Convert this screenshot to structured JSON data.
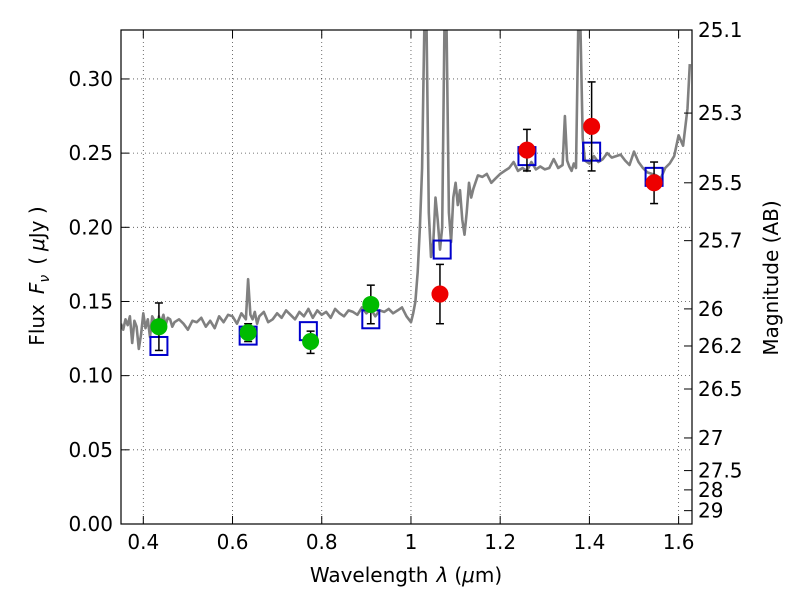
{
  "chart_data": {
    "type": "scatter",
    "xlabel": "Wavelength  λ (μm)",
    "ylabel": "Flux  F_ν  ( μJy )",
    "ylabel_right": "Magnitude (AB)",
    "xlim": [
      0.35,
      1.63
    ],
    "ylim": [
      0.0,
      0.333
    ],
    "grid": true,
    "x_ticks": [
      0.4,
      0.6,
      0.8,
      1.0,
      1.2,
      1.4,
      1.6
    ],
    "x_tick_labels": [
      "0.4",
      "0.6",
      "0.8",
      "1",
      "1.2",
      "1.4",
      "1.6"
    ],
    "y_ticks": [
      0.0,
      0.05,
      0.1,
      0.15,
      0.2,
      0.25,
      0.3
    ],
    "y_tick_labels": [
      "0.00",
      "0.05",
      "0.10",
      "0.15",
      "0.20",
      "0.25",
      "0.30"
    ],
    "right_ticks": [
      {
        "label": "25.1",
        "flux": 0.333
      },
      {
        "label": "25.3",
        "flux": 0.277
      },
      {
        "label": "25.5",
        "flux": 0.23
      },
      {
        "label": "25.7",
        "flux": 0.191
      },
      {
        "label": "26",
        "flux": 0.145
      },
      {
        "label": "26.2",
        "flux": 0.12
      },
      {
        "label": "26.5",
        "flux": 0.091
      },
      {
        "label": "27",
        "flux": 0.058
      },
      {
        "label": "27.5",
        "flux": 0.036
      },
      {
        "label": "28",
        "flux": 0.023
      },
      {
        "label": "29",
        "flux": 0.009
      }
    ],
    "series": [
      {
        "color": "#808080",
        "style": "line",
        "x": [
          0.35,
          0.355,
          0.36,
          0.365,
          0.37,
          0.375,
          0.38,
          0.385,
          0.39,
          0.395,
          0.4,
          0.405,
          0.41,
          0.415,
          0.42,
          0.425,
          0.43,
          0.435,
          0.44,
          0.445,
          0.45,
          0.455,
          0.46,
          0.465,
          0.47,
          0.48,
          0.49,
          0.5,
          0.51,
          0.52,
          0.53,
          0.54,
          0.55,
          0.56,
          0.57,
          0.58,
          0.59,
          0.6,
          0.61,
          0.62,
          0.63,
          0.635,
          0.64,
          0.645,
          0.65,
          0.655,
          0.66,
          0.67,
          0.68,
          0.69,
          0.7,
          0.71,
          0.72,
          0.73,
          0.74,
          0.75,
          0.76,
          0.77,
          0.78,
          0.79,
          0.8,
          0.81,
          0.82,
          0.83,
          0.84,
          0.85,
          0.86,
          0.87,
          0.88,
          0.89,
          0.9,
          0.91,
          0.92,
          0.93,
          0.94,
          0.95,
          0.96,
          0.97,
          0.98,
          0.99,
          1.0,
          1.005,
          1.01,
          1.015,
          1.02,
          1.025,
          1.028,
          1.03,
          1.032,
          1.035,
          1.04,
          1.045,
          1.05,
          1.055,
          1.06,
          1.065,
          1.07,
          1.075,
          1.08,
          1.085,
          1.09,
          1.095,
          1.1,
          1.105,
          1.11,
          1.115,
          1.12,
          1.125,
          1.13,
          1.135,
          1.14,
          1.15,
          1.16,
          1.17,
          1.18,
          1.19,
          1.2,
          1.21,
          1.22,
          1.23,
          1.24,
          1.25,
          1.26,
          1.27,
          1.28,
          1.29,
          1.3,
          1.31,
          1.32,
          1.33,
          1.34,
          1.345,
          1.35,
          1.355,
          1.36,
          1.365,
          1.37,
          1.375,
          1.38,
          1.385,
          1.39,
          1.4,
          1.41,
          1.42,
          1.43,
          1.44,
          1.45,
          1.46,
          1.47,
          1.48,
          1.49,
          1.5,
          1.51,
          1.52,
          1.53,
          1.54,
          1.55,
          1.56,
          1.57,
          1.58,
          1.59,
          1.6,
          1.61,
          1.62,
          1.625
        ],
        "y": [
          0.135,
          0.131,
          0.138,
          0.134,
          0.14,
          0.122,
          0.137,
          0.133,
          0.118,
          0.128,
          0.142,
          0.132,
          0.138,
          0.126,
          0.14,
          0.137,
          0.132,
          0.14,
          0.136,
          0.141,
          0.134,
          0.139,
          0.138,
          0.133,
          0.136,
          0.138,
          0.135,
          0.131,
          0.137,
          0.136,
          0.139,
          0.133,
          0.137,
          0.132,
          0.14,
          0.136,
          0.141,
          0.14,
          0.135,
          0.142,
          0.138,
          0.165,
          0.141,
          0.138,
          0.143,
          0.135,
          0.14,
          0.143,
          0.136,
          0.138,
          0.142,
          0.139,
          0.144,
          0.141,
          0.138,
          0.143,
          0.14,
          0.145,
          0.139,
          0.144,
          0.141,
          0.143,
          0.139,
          0.145,
          0.142,
          0.14,
          0.144,
          0.143,
          0.141,
          0.146,
          0.142,
          0.145,
          0.14,
          0.144,
          0.143,
          0.145,
          0.142,
          0.144,
          0.146,
          0.14,
          0.136,
          0.142,
          0.15,
          0.17,
          0.2,
          0.24,
          0.3,
          0.333,
          0.333,
          0.333,
          0.21,
          0.18,
          0.19,
          0.22,
          0.205,
          0.185,
          0.2,
          0.333,
          0.333,
          0.21,
          0.19,
          0.22,
          0.23,
          0.215,
          0.225,
          0.205,
          0.195,
          0.21,
          0.23,
          0.22,
          0.226,
          0.235,
          0.234,
          0.236,
          0.23,
          0.233,
          0.236,
          0.238,
          0.24,
          0.244,
          0.238,
          0.24,
          0.238,
          0.244,
          0.239,
          0.241,
          0.239,
          0.24,
          0.246,
          0.24,
          0.242,
          0.275,
          0.245,
          0.241,
          0.238,
          0.243,
          0.24,
          0.333,
          0.333,
          0.26,
          0.245,
          0.243,
          0.248,
          0.244,
          0.246,
          0.25,
          0.247,
          0.248,
          0.249,
          0.245,
          0.242,
          0.251,
          0.244,
          0.24,
          0.237,
          0.236,
          0.235,
          0.233,
          0.24,
          0.243,
          0.248,
          0.262,
          0.255,
          0.28,
          0.31
        ]
      },
      {
        "color": "#0000cc",
        "style": "open-square",
        "x": [
          0.435,
          0.635,
          0.77,
          0.91,
          1.07,
          1.26,
          1.405,
          1.545
        ],
        "y": [
          0.12,
          0.127,
          0.13,
          0.138,
          0.185,
          0.248,
          0.251,
          0.234
        ]
      },
      {
        "color": "#00bb00",
        "style": "filled-circle",
        "x": [
          0.435,
          0.635,
          0.775,
          0.91
        ],
        "y": [
          0.133,
          0.129,
          0.123,
          0.148
        ],
        "yerr_low": [
          0.016,
          0.006,
          0.008,
          0.013
        ],
        "yerr_high": [
          0.016,
          0.006,
          0.007,
          0.013
        ]
      },
      {
        "color": "#ee0000",
        "style": "filled-circle",
        "x": [
          1.065,
          1.26,
          1.405,
          1.545
        ],
        "y": [
          0.155,
          0.252,
          0.268,
          0.23
        ],
        "yerr_low": [
          0.02,
          0.014,
          0.03,
          0.014
        ],
        "yerr_high": [
          0.02,
          0.014,
          0.03,
          0.014
        ]
      }
    ]
  }
}
